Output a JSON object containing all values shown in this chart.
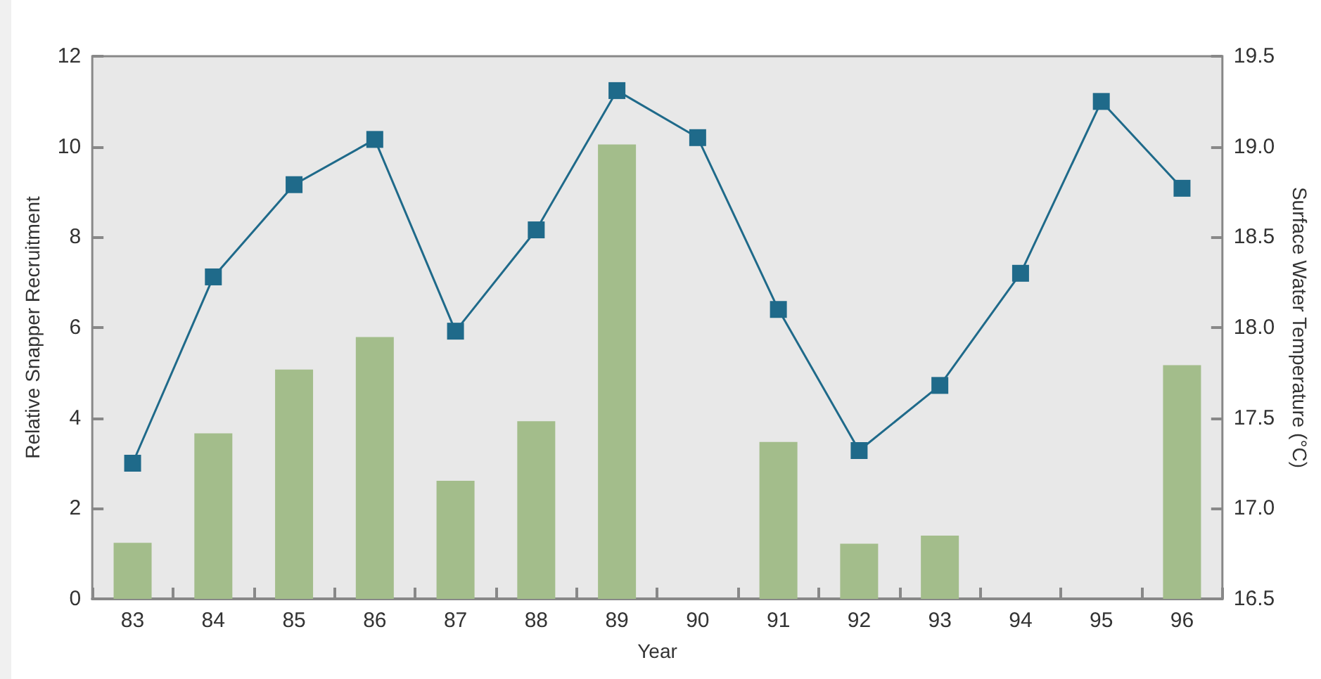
{
  "chart_data": {
    "type": "bar",
    "xlabel": "Year",
    "ylabel": "Relative Snapper Recruitment",
    "y2label": "Surface Water Temperature (°C)",
    "categories": [
      "83",
      "84",
      "85",
      "86",
      "87",
      "88",
      "89",
      "90",
      "91",
      "92",
      "93",
      "94",
      "95",
      "96"
    ],
    "series": [
      {
        "color": "#a3bd8b",
        "values": [
          1.24,
          3.66,
          5.07,
          5.79,
          2.61,
          3.93,
          10.05,
          0,
          3.47,
          1.22,
          1.4,
          0,
          0,
          5.17
        ]
      },
      {
        "type": "line",
        "axis": "y2",
        "color": "#1f6a8a",
        "marker": "square",
        "values": [
          17.25,
          18.28,
          18.79,
          19.04,
          17.98,
          18.54,
          19.31,
          19.05,
          18.1,
          17.32,
          17.68,
          18.3,
          19.25,
          18.77
        ]
      }
    ],
    "ylim": [
      0,
      12
    ],
    "yticks": [
      0,
      2,
      4,
      6,
      8,
      10,
      12
    ],
    "y2lim": [
      16.5,
      19.5
    ],
    "y2ticks": [
      {
        "value": 16.5,
        "label": "16.5"
      },
      {
        "value": 17,
        "label": "17.0"
      },
      {
        "value": 17.5,
        "label": "17.5"
      },
      {
        "value": 18,
        "label": "18.0"
      },
      {
        "value": 18.5,
        "label": "18.5"
      },
      {
        "value": 19,
        "label": "19.0"
      },
      {
        "value": 19.5,
        "label": "19.5"
      }
    ],
    "grid": false
  }
}
